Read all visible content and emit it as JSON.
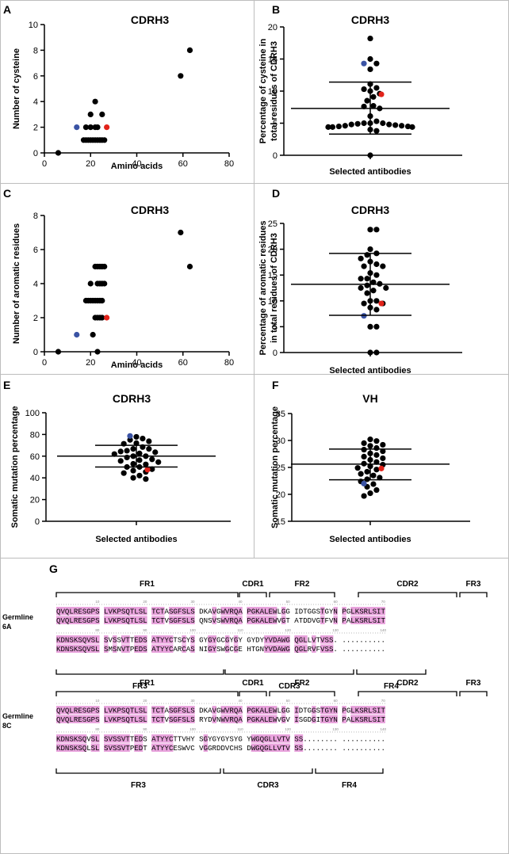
{
  "figure": {
    "colors": {
      "black": "#000000",
      "red": "#e2231a",
      "blue": "#3a53a4",
      "highlight": "#e9a3dd",
      "grid": "#bdbdbd"
    }
  },
  "chart_data": [
    {
      "panel": "A",
      "type": "scatter",
      "title": "CDRH3",
      "xlabel": "Amino acids",
      "ylabel": "Number of cysteine",
      "xlim": [
        0,
        80
      ],
      "ylim": [
        0,
        10
      ],
      "xticks": [
        "0",
        "20",
        "40",
        "60",
        "80"
      ],
      "yticks": [
        "0",
        "2",
        "4",
        "6",
        "8",
        "10"
      ],
      "points": [
        {
          "x": 6,
          "y": 0
        },
        {
          "x": 17,
          "y": 1
        },
        {
          "x": 18,
          "y": 1
        },
        {
          "x": 19,
          "y": 1
        },
        {
          "x": 20,
          "y": 1
        },
        {
          "x": 21,
          "y": 1
        },
        {
          "x": 22,
          "y": 1
        },
        {
          "x": 23,
          "y": 1
        },
        {
          "x": 24,
          "y": 1
        },
        {
          "x": 25,
          "y": 1
        },
        {
          "x": 26,
          "y": 1
        },
        {
          "x": 18,
          "y": 2
        },
        {
          "x": 20,
          "y": 2
        },
        {
          "x": 22,
          "y": 2
        },
        {
          "x": 23,
          "y": 2
        },
        {
          "x": 20,
          "y": 3
        },
        {
          "x": 25,
          "y": 3
        },
        {
          "x": 22,
          "y": 4
        },
        {
          "x": 59,
          "y": 6
        },
        {
          "x": 63,
          "y": 8
        },
        {
          "x": 14,
          "y": 2,
          "highlight": "blue"
        },
        {
          "x": 27,
          "y": 2,
          "highlight": "red"
        }
      ]
    },
    {
      "panel": "B",
      "type": "dot_mean_sd",
      "title": "CDRH3",
      "xlabel": "Selected antibodies",
      "ylabel": [
        "Percentage of cysteine in",
        "total residues of CDRH3"
      ],
      "ylim": [
        0,
        20
      ],
      "yticks": [
        "0",
        "5",
        "10",
        "15",
        "20"
      ],
      "mean": 7.3,
      "sd_upper": 11.4,
      "sd_lower": 3.3,
      "values": [
        18.2,
        15.0,
        14.3,
        13.4,
        11.1,
        10.5,
        10.3,
        10.0,
        9.6,
        9.1,
        8.5,
        7.7,
        7.6,
        7.3,
        6.1,
        5.3,
        5.0,
        5.0,
        4.9,
        4.8,
        4.7,
        4.6,
        4.5,
        4.4,
        4.4,
        4.4,
        4.5,
        4.6,
        4.8,
        5.0,
        4.0,
        3.8,
        0.0
      ],
      "highlight": [
        {
          "value": 14.3,
          "color": "blue"
        },
        {
          "value": 9.5,
          "color": "red"
        }
      ]
    },
    {
      "panel": "C",
      "type": "scatter",
      "title": "CDRH3",
      "xlabel": "Amino acids",
      "ylabel": "Number of aromatic residues",
      "xlim": [
        0,
        80
      ],
      "ylim": [
        0,
        8
      ],
      "xticks": [
        "0",
        "20",
        "40",
        "60",
        "80"
      ],
      "yticks": [
        "0",
        "2",
        "4",
        "6",
        "8"
      ],
      "points": [
        {
          "x": 6,
          "y": 0
        },
        {
          "x": 23,
          "y": 0
        },
        {
          "x": 21,
          "y": 1
        },
        {
          "x": 22,
          "y": 2
        },
        {
          "x": 23,
          "y": 2
        },
        {
          "x": 24,
          "y": 2
        },
        {
          "x": 25,
          "y": 2
        },
        {
          "x": 18,
          "y": 3
        },
        {
          "x": 19,
          "y": 3
        },
        {
          "x": 20,
          "y": 3
        },
        {
          "x": 21,
          "y": 3
        },
        {
          "x": 22,
          "y": 3
        },
        {
          "x": 23,
          "y": 3
        },
        {
          "x": 24,
          "y": 3
        },
        {
          "x": 25,
          "y": 3
        },
        {
          "x": 20,
          "y": 4
        },
        {
          "x": 23,
          "y": 4
        },
        {
          "x": 24,
          "y": 4
        },
        {
          "x": 25,
          "y": 4
        },
        {
          "x": 26,
          "y": 4
        },
        {
          "x": 22,
          "y": 5
        },
        {
          "x": 23,
          "y": 5
        },
        {
          "x": 24,
          "y": 5
        },
        {
          "x": 25,
          "y": 5
        },
        {
          "x": 26,
          "y": 5
        },
        {
          "x": 59,
          "y": 7
        },
        {
          "x": 63,
          "y": 5
        },
        {
          "x": 14,
          "y": 1,
          "highlight": "blue"
        },
        {
          "x": 27,
          "y": 2,
          "highlight": "red"
        }
      ]
    },
    {
      "panel": "D",
      "type": "dot_mean_sd",
      "title": "CDRH3",
      "xlabel": "Selected antibodies",
      "ylabel": [
        "Percentage of aromatic residues",
        "in total residues of CDRH3"
      ],
      "ylim": [
        0,
        25
      ],
      "yticks": [
        "0",
        "5",
        "10",
        "15",
        "20",
        "25"
      ],
      "mean": 13.2,
      "sd_upper": 19.2,
      "sd_lower": 7.2,
      "values": [
        23.8,
        23.8,
        20.0,
        19.2,
        18.9,
        18.2,
        17.6,
        17.1,
        16.7,
        16.7,
        15.4,
        15.0,
        14.3,
        14.3,
        13.6,
        13.3,
        13.0,
        12.5,
        12.5,
        12.0,
        11.5,
        10.0,
        10.0,
        9.5,
        9.5,
        8.7,
        8.3,
        5.0,
        5.0,
        0.0,
        0.0
      ],
      "highlight": [
        {
          "value": 7.1,
          "color": "blue"
        },
        {
          "value": 9.5,
          "color": "red"
        }
      ]
    },
    {
      "panel": "E",
      "type": "dot_mean_sd",
      "title": "CDRH3",
      "xlabel": "Selected antibodies",
      "ylabel": [
        "Somatic mutation percentage"
      ],
      "ylim": [
        0,
        100
      ],
      "yticks": [
        "0",
        "20",
        "40",
        "60",
        "80",
        "100"
      ],
      "mean": 60,
      "sd_upper": 70,
      "sd_lower": 50,
      "values": [
        77.8,
        76.2,
        75.0,
        73.7,
        72.0,
        71.4,
        68.4,
        66.7,
        66.7,
        65.0,
        64.3,
        63.6,
        62.5,
        61.9,
        60.0,
        60.0,
        58.8,
        57.1,
        56.3,
        55.6,
        54.5,
        52.9,
        52.4,
        50.0,
        50.0,
        48.0,
        46.7,
        45.5,
        44.4,
        42.1,
        40.0,
        38.9
      ],
      "highlight": [
        {
          "value": 78.6,
          "color": "blue"
        },
        {
          "value": 47.6,
          "color": "red"
        }
      ]
    },
    {
      "panel": "F",
      "type": "dot_mean_sd",
      "title": "VH",
      "xlabel": "Selected antibodies",
      "ylabel": [
        "Somatic mutation percentage"
      ],
      "ylim": [
        15,
        35
      ],
      "yticks": [
        "15",
        "20",
        "25",
        "30",
        "35"
      ],
      "mean": 25.6,
      "sd_upper": 28.4,
      "sd_lower": 22.7,
      "values": [
        30.2,
        29.9,
        29.5,
        29.2,
        29.0,
        28.6,
        28.3,
        28.0,
        27.6,
        27.3,
        27.0,
        26.7,
        26.4,
        26.0,
        25.7,
        25.5,
        25.2,
        24.9,
        24.6,
        24.2,
        23.8,
        23.5,
        23.1,
        22.8,
        22.4,
        21.9,
        21.4,
        20.8,
        20.2,
        19.7
      ],
      "highlight": [
        {
          "value": 22.0,
          "color": "blue"
        },
        {
          "value": 24.8,
          "color": "red"
        }
      ]
    }
  ],
  "panelG": {
    "label": "G",
    "blocks": [
      {
        "germline_line1": "Germline",
        "germline_line2": "6A",
        "row1": {
          "top_labels": [
            [
              "FR1",
              71,
              300
            ],
            [
              "CDR1",
              302,
              336
            ],
            [
              "FR2",
              340,
              422
            ],
            [
              "CDR2",
              452,
              576
            ],
            [
              "FR3",
              580,
              614
            ]
          ],
          "ticks": [
            "10",
            "20",
            "30",
            "40",
            "50",
            "60",
            "70"
          ],
          "seq_a": "QVQLRESGPS LVKPSQTLSL TCTASGFSLS DKAVGWVRQA PGKALEWLGG IDTGGSTGYN PGLKSRLSIT",
          "seq_b": "QVQLRESGPS LVKPSQTLSL TCTVSGFSLS QNSVSWVRQA PGKALEWVGT ATDDVGTFVN PALKSRLSIT"
        },
        "row2": {
          "bottom_labels": [
            [
              "FR3",
              71,
              282
            ],
            [
              "CDR3",
              284,
              446
            ],
            [
              "FR4",
              450,
              537
            ]
          ],
          "ticks": [
            "80",
            "90",
            "100",
            "110",
            "120",
            "130",
            "140"
          ],
          "seq_a": "KDNSKSQVSL SVSSVTTEDS ATYYCTSCYS GYGYGCGYGY GYDYYVDAWG QGLLVTVSS. ..........",
          "seq_b": "KDNSKSQVSL SMSNVTPEDS ATYYCARCAS NIGYSWGCGE HTGNYVDAWG QGLRVFVSS. .........."
        }
      },
      {
        "germline_line1": "Germline",
        "germline_line2": "8C",
        "row1": {
          "top_labels": [
            [
              "FR1",
              71,
              300
            ],
            [
              "CDR1",
              302,
              336
            ],
            [
              "FR2",
              340,
              422
            ],
            [
              "CDR2",
              452,
              576
            ],
            [
              "FR3",
              580,
              614
            ]
          ],
          "ticks": [
            "10",
            "20",
            "30",
            "40",
            "50",
            "60",
            "70"
          ],
          "seq_a": "QVQLRESGPS LVKPSQTLSL TCTASGFSLS DKAVGWVRQA PGKALEWLGG IDTGGSTGYN PGLKSRLSIT",
          "seq_b": "QVQLRESGPS LVKPSQTLSL TCTVSGFSLS RYDVNWVRQA PGKALEWVGV ISGDGITGYN PALKSRLSIT"
        },
        "row2": {
          "bottom_labels": [
            [
              "FR3",
              71,
              278
            ],
            [
              "CDR3",
              282,
              394
            ],
            [
              "FR4",
              398,
              483
            ]
          ],
          "ticks": [
            "80",
            "90",
            "100",
            "110",
            "120",
            "130",
            "140"
          ],
          "seq_a": "KDNSKSQVSL SVSSVTTEDS ATYYCTTVHY SGYGYGYSYG YWGQGLLVTV SS........ ..........",
          "seq_b": "KDNSKSQLSL SVSSVTPEDT ATYYCESWVC VGGRDDVCHS DWGQGLLVTV SS........ .........."
        }
      }
    ]
  }
}
